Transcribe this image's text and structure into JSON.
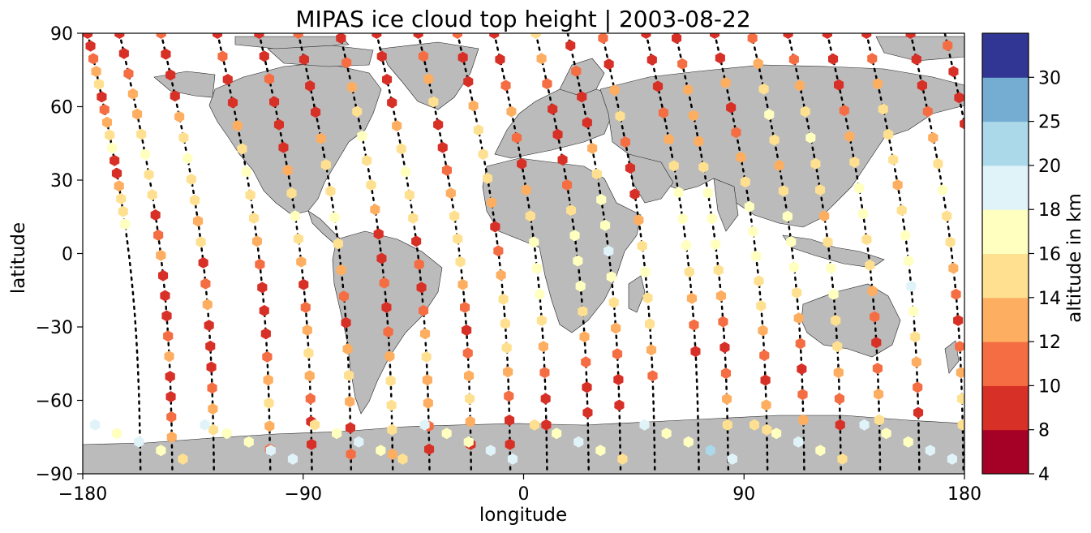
{
  "title": "MIPAS ice cloud top height | 2003-08-22",
  "chart_data": {
    "type": "map-scatter",
    "projection": "plate-carree",
    "xlabel": "longitude",
    "ylabel": "latitude",
    "xlim": [
      -180,
      180
    ],
    "ylim": [
      -90,
      90
    ],
    "xticks": [
      "−180",
      "−90",
      "0",
      "90",
      "180"
    ],
    "yticks": [
      "−90",
      "−60",
      "−30",
      "0",
      "30",
      "60",
      "90"
    ],
    "colorbar": {
      "label": "altitude in km",
      "bounds": [
        4,
        8,
        10,
        12,
        14,
        16,
        18,
        20,
        25,
        30
      ],
      "tick_labels": [
        "4",
        "8",
        "10",
        "12",
        "14",
        "16",
        "18",
        "20",
        "25",
        "30"
      ],
      "colors": [
        "#a50026",
        "#d73027",
        "#f46d43",
        "#fdae61",
        "#fee090",
        "#ffffbf",
        "#e0f3f8",
        "#abd9e9",
        "#74add1",
        "#313695"
      ]
    },
    "land_color": "#bbbbbb",
    "orbit_tracks": [
      {
        "lon0": -178,
        "dir": 1,
        "hex_from": 90,
        "hex_to": 12,
        "hex_values": [
          9,
          9,
          10,
          12,
          14,
          9,
          10,
          12,
          14,
          16,
          9,
          9,
          12,
          14,
          15,
          16
        ]
      },
      {
        "lon0": -165,
        "dir": 1,
        "hex_from": 90,
        "hex_to": -75,
        "hex_values": [
          9,
          8,
          10,
          12,
          13,
          14,
          16,
          15,
          14,
          9,
          10,
          12,
          9,
          8,
          9,
          10,
          12,
          9,
          8,
          10,
          12
        ]
      },
      {
        "lon0": -148,
        "dir": 1,
        "hex_from": 90,
        "hex_to": -72,
        "hex_values": [
          10,
          9,
          9,
          8,
          12,
          14,
          16,
          15,
          14,
          12,
          14,
          9,
          10,
          12,
          9,
          8,
          9,
          10,
          12,
          14
        ]
      },
      {
        "lon0": -125,
        "dir": 1,
        "hex_from": 90,
        "hex_to": -80,
        "hex_values": [
          9,
          10,
          8,
          9,
          12,
          14,
          16,
          15,
          14,
          12,
          10,
          9,
          8,
          9,
          10,
          12,
          14,
          12,
          10
        ]
      },
      {
        "lon0": -108,
        "dir": 1,
        "hex_from": 90,
        "hex_to": -78,
        "hex_values": [
          9,
          8,
          10,
          9,
          9,
          8,
          12,
          14,
          16,
          14,
          12,
          9,
          10,
          12,
          14,
          12,
          10,
          9,
          8
        ]
      },
      {
        "lon0": -92,
        "dir": 1,
        "hex_from": 90,
        "hex_to": -82,
        "hex_values": [
          10,
          9,
          8,
          9,
          12,
          14,
          15,
          16,
          14,
          12,
          10,
          9,
          12,
          14,
          12,
          9,
          10
        ]
      },
      {
        "lon0": -75,
        "dir": 1,
        "hex_from": 88,
        "hex_to": -82,
        "hex_values": [
          9,
          10,
          12,
          14,
          16,
          15,
          14,
          12,
          9,
          8,
          10,
          9,
          10,
          12,
          14,
          15,
          14,
          12
        ]
      },
      {
        "lon0": -60,
        "dir": 1,
        "hex_from": 90,
        "hex_to": -80,
        "hex_values": [
          8,
          9,
          9,
          8,
          12,
          14,
          16,
          15,
          14,
          9,
          10,
          9,
          10,
          12,
          14,
          13,
          12,
          10,
          9
        ]
      },
      {
        "lon0": -43,
        "dir": 1,
        "hex_from": 90,
        "hex_to": -78,
        "hex_values": [
          9,
          10,
          12,
          14,
          9,
          8,
          10,
          12,
          14,
          15,
          14,
          12,
          10,
          9,
          10,
          12,
          14,
          12,
          9
        ]
      },
      {
        "lon0": -27,
        "dir": 1,
        "hex_from": 90,
        "hex_to": -78,
        "hex_values": [
          10,
          9,
          8,
          12,
          14,
          15,
          14,
          12,
          9,
          10,
          12,
          14,
          15,
          14,
          12,
          10,
          9,
          8
        ]
      },
      {
        "lon0": -12,
        "dir": 1,
        "hex_from": 90,
        "hex_to": -70,
        "hex_values": [
          9,
          8,
          10,
          12,
          10,
          9,
          12,
          14,
          16,
          17,
          16,
          15,
          12,
          10,
          9,
          8
        ]
      },
      {
        "lon0": 5,
        "dir": 1,
        "hex_from": 90,
        "hex_to": -65,
        "hex_values": [
          15,
          12,
          10,
          9,
          8,
          9,
          10,
          14,
          16,
          17,
          16,
          15,
          12,
          10,
          9,
          8
        ]
      },
      {
        "lon0": 18,
        "dir": 1,
        "hex_from": 85,
        "hex_to": -62,
        "hex_values": [
          9,
          10,
          8,
          9,
          12,
          14,
          16,
          17,
          18,
          16,
          14,
          12,
          10,
          9,
          8
        ]
      },
      {
        "lon0": 32,
        "dir": 1,
        "hex_from": 88,
        "hex_to": -50,
        "hex_values": [
          10,
          9,
          12,
          14,
          10,
          8,
          9,
          12,
          14,
          16,
          15,
          14,
          12,
          10
        ]
      },
      {
        "lon0": 50,
        "dir": 1,
        "hex_from": 90,
        "hex_to": -40,
        "hex_values": [
          9,
          8,
          9,
          10,
          12,
          14,
          16,
          17,
          16,
          14,
          12,
          10,
          9
        ]
      },
      {
        "lon0": 62,
        "dir": 1,
        "hex_from": 88,
        "hex_to": -70,
        "hex_values": [
          9,
          10,
          12,
          13,
          12,
          14,
          16,
          17,
          16,
          14,
          12,
          10,
          9,
          10,
          12,
          14
        ]
      },
      {
        "lon0": 78,
        "dir": 1,
        "hex_from": 90,
        "hex_to": -72,
        "hex_values": [
          9,
          8,
          12,
          9,
          10,
          12,
          14,
          16,
          17,
          16,
          15,
          14,
          12,
          10,
          9,
          12,
          14
        ]
      },
      {
        "lon0": 93,
        "dir": 1,
        "hex_from": 88,
        "hex_to": -68,
        "hex_values": [
          10,
          12,
          14,
          16,
          14,
          12,
          14,
          16,
          17,
          16,
          14,
          12,
          10,
          9,
          10,
          12
        ]
      },
      {
        "lon0": 108,
        "dir": 1,
        "hex_from": 90,
        "hex_to": -70,
        "hex_values": [
          9,
          10,
          12,
          14,
          16,
          15,
          14,
          12,
          14,
          16,
          17,
          15,
          14,
          12,
          10,
          9
        ]
      },
      {
        "lon0": 124,
        "dir": 1,
        "hex_from": 90,
        "hex_to": -68,
        "hex_values": [
          9,
          8,
          9,
          10,
          12,
          14,
          16,
          17,
          15,
          14,
          12,
          10,
          9,
          10,
          12,
          14
        ]
      },
      {
        "lon0": 140,
        "dir": 1,
        "hex_from": 90,
        "hex_to": -65,
        "hex_values": [
          9,
          10,
          12,
          14,
          15,
          14,
          12,
          14,
          16,
          17,
          18,
          16,
          14,
          12,
          10,
          9
        ]
      },
      {
        "lon0": 158,
        "dir": 1,
        "hex_from": 90,
        "hex_to": -70,
        "hex_values": [
          9,
          8,
          9,
          10,
          12,
          14,
          16,
          15,
          14,
          12,
          10,
          9,
          10,
          12,
          14,
          15
        ]
      },
      {
        "lon0": 172,
        "dir": 1,
        "hex_from": 85,
        "hex_to": -75,
        "hex_values": [
          10,
          9,
          8,
          9,
          12,
          14,
          15,
          14,
          12,
          10,
          9,
          8,
          9,
          10,
          12,
          14
        ]
      }
    ],
    "antarctic_hex_values": [
      18,
      16,
      18,
      17,
      14,
      18,
      17,
      16,
      19,
      18,
      15,
      16,
      18,
      17,
      14,
      18,
      16,
      17,
      19,
      18,
      15,
      16,
      18,
      17,
      14,
      18,
      16,
      17,
      22,
      18,
      15,
      16,
      18,
      17,
      14,
      18,
      16,
      17,
      19,
      18
    ]
  }
}
